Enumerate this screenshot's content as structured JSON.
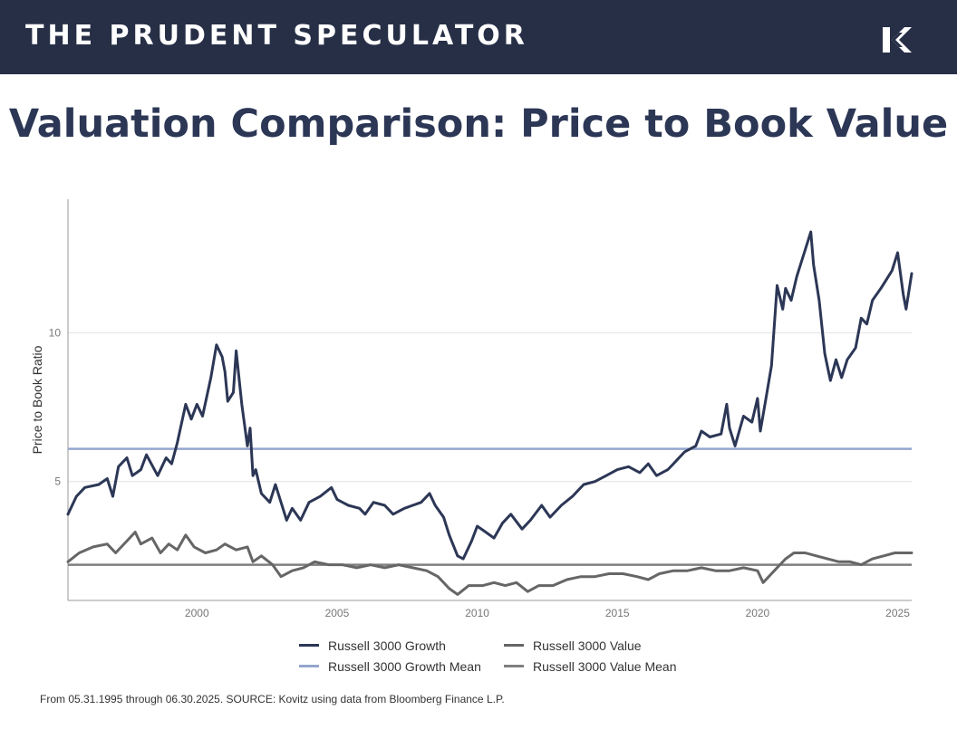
{
  "header": {
    "brand": "THE PRUDENT SPECULATOR",
    "logo_icon": "kovitz-k-logo-icon"
  },
  "page": {
    "title": "Valuation Comparison: Price to Book Value",
    "footnote": "From 05.31.1995 through 06.30.2025. SOURCE: Kovitz using data from Bloomberg Finance L.P."
  },
  "legend": [
    {
      "label": "Russell 3000 Growth",
      "color": "#2c3756"
    },
    {
      "label": "Russell 3000 Value",
      "color": "#666666"
    },
    {
      "label": "Russell 3000 Growth Mean",
      "color": "#94a6cf"
    },
    {
      "label": "Russell 3000 Value Mean",
      "color": "#7f7f7f"
    }
  ],
  "chart_data": {
    "type": "line",
    "title": "Valuation Comparison: Price to Book Value",
    "xlabel": "",
    "ylabel": "Price to Book Ratio",
    "xlim": [
      1995.4,
      2025.5
    ],
    "ylim": [
      1,
      14.5
    ],
    "x_ticks": [
      "2000",
      "2005",
      "2010",
      "2015",
      "2020",
      "2025"
    ],
    "y_ticks": [
      "5",
      "10"
    ],
    "grid": "horizontal",
    "legend_position": "bottom",
    "series": [
      {
        "name": "Russell 3000 Growth",
        "color": "#2c3756",
        "points": [
          [
            1995.4,
            3.9
          ],
          [
            1995.7,
            4.5
          ],
          [
            1996.0,
            4.8
          ],
          [
            1996.5,
            4.9
          ],
          [
            1996.8,
            5.1
          ],
          [
            1997.0,
            4.5
          ],
          [
            1997.2,
            5.5
          ],
          [
            1997.5,
            5.8
          ],
          [
            1997.7,
            5.2
          ],
          [
            1998.0,
            5.4
          ],
          [
            1998.2,
            5.9
          ],
          [
            1998.6,
            5.2
          ],
          [
            1998.9,
            5.8
          ],
          [
            1999.1,
            5.6
          ],
          [
            1999.3,
            6.3
          ],
          [
            1999.6,
            7.6
          ],
          [
            1999.8,
            7.1
          ],
          [
            2000.0,
            7.6
          ],
          [
            2000.2,
            7.2
          ],
          [
            2000.5,
            8.5
          ],
          [
            2000.7,
            9.6
          ],
          [
            2000.9,
            9.2
          ],
          [
            2001.0,
            8.7
          ],
          [
            2001.1,
            7.7
          ],
          [
            2001.3,
            8.0
          ],
          [
            2001.4,
            9.4
          ],
          [
            2001.6,
            7.6
          ],
          [
            2001.8,
            6.2
          ],
          [
            2001.9,
            6.8
          ],
          [
            2002.0,
            5.2
          ],
          [
            2002.1,
            5.4
          ],
          [
            2002.3,
            4.6
          ],
          [
            2002.6,
            4.3
          ],
          [
            2002.8,
            4.9
          ],
          [
            2003.0,
            4.3
          ],
          [
            2003.2,
            3.7
          ],
          [
            2003.4,
            4.1
          ],
          [
            2003.7,
            3.7
          ],
          [
            2004.0,
            4.3
          ],
          [
            2004.4,
            4.5
          ],
          [
            2004.8,
            4.8
          ],
          [
            2005.0,
            4.4
          ],
          [
            2005.4,
            4.2
          ],
          [
            2005.8,
            4.1
          ],
          [
            2006.0,
            3.9
          ],
          [
            2006.3,
            4.3
          ],
          [
            2006.7,
            4.2
          ],
          [
            2007.0,
            3.9
          ],
          [
            2007.4,
            4.1
          ],
          [
            2007.7,
            4.2
          ],
          [
            2008.0,
            4.3
          ],
          [
            2008.3,
            4.6
          ],
          [
            2008.5,
            4.2
          ],
          [
            2008.8,
            3.8
          ],
          [
            2009.0,
            3.2
          ],
          [
            2009.3,
            2.5
          ],
          [
            2009.5,
            2.4
          ],
          [
            2009.8,
            3.0
          ],
          [
            2010.0,
            3.5
          ],
          [
            2010.3,
            3.3
          ],
          [
            2010.6,
            3.1
          ],
          [
            2010.9,
            3.6
          ],
          [
            2011.2,
            3.9
          ],
          [
            2011.6,
            3.4
          ],
          [
            2011.9,
            3.7
          ],
          [
            2012.3,
            4.2
          ],
          [
            2012.6,
            3.8
          ],
          [
            2013.0,
            4.2
          ],
          [
            2013.4,
            4.5
          ],
          [
            2013.8,
            4.9
          ],
          [
            2014.2,
            5.0
          ],
          [
            2014.6,
            5.2
          ],
          [
            2015.0,
            5.4
          ],
          [
            2015.4,
            5.5
          ],
          [
            2015.8,
            5.3
          ],
          [
            2016.1,
            5.6
          ],
          [
            2016.4,
            5.2
          ],
          [
            2016.8,
            5.4
          ],
          [
            2017.0,
            5.6
          ],
          [
            2017.4,
            6.0
          ],
          [
            2017.8,
            6.2
          ],
          [
            2018.0,
            6.7
          ],
          [
            2018.3,
            6.5
          ],
          [
            2018.7,
            6.6
          ],
          [
            2018.9,
            7.6
          ],
          [
            2019.0,
            6.8
          ],
          [
            2019.2,
            6.2
          ],
          [
            2019.5,
            7.2
          ],
          [
            2019.8,
            7.0
          ],
          [
            2020.0,
            7.8
          ],
          [
            2020.1,
            6.7
          ],
          [
            2020.3,
            7.8
          ],
          [
            2020.5,
            8.9
          ],
          [
            2020.7,
            11.6
          ],
          [
            2020.9,
            10.8
          ],
          [
            2021.0,
            11.5
          ],
          [
            2021.2,
            11.1
          ],
          [
            2021.4,
            11.9
          ],
          [
            2021.7,
            12.8
          ],
          [
            2021.9,
            13.4
          ],
          [
            2022.0,
            12.3
          ],
          [
            2022.2,
            11.1
          ],
          [
            2022.4,
            9.3
          ],
          [
            2022.6,
            8.4
          ],
          [
            2022.8,
            9.1
          ],
          [
            2023.0,
            8.5
          ],
          [
            2023.2,
            9.1
          ],
          [
            2023.5,
            9.5
          ],
          [
            2023.7,
            10.5
          ],
          [
            2023.9,
            10.3
          ],
          [
            2024.1,
            11.1
          ],
          [
            2024.4,
            11.5
          ],
          [
            2024.6,
            11.8
          ],
          [
            2024.8,
            12.1
          ],
          [
            2025.0,
            12.7
          ],
          [
            2025.2,
            11.3
          ],
          [
            2025.3,
            10.8
          ],
          [
            2025.5,
            12.0
          ]
        ]
      },
      {
        "name": "Russell 3000 Value",
        "color": "#666666",
        "points": [
          [
            1995.4,
            2.3
          ],
          [
            1995.8,
            2.6
          ],
          [
            1996.3,
            2.8
          ],
          [
            1996.8,
            2.9
          ],
          [
            1997.1,
            2.6
          ],
          [
            1997.5,
            3.0
          ],
          [
            1997.8,
            3.3
          ],
          [
            1998.0,
            2.9
          ],
          [
            1998.4,
            3.1
          ],
          [
            1998.7,
            2.6
          ],
          [
            1999.0,
            2.9
          ],
          [
            1999.3,
            2.7
          ],
          [
            1999.6,
            3.2
          ],
          [
            1999.9,
            2.8
          ],
          [
            2000.3,
            2.6
          ],
          [
            2000.7,
            2.7
          ],
          [
            2001.0,
            2.9
          ],
          [
            2001.4,
            2.7
          ],
          [
            2001.8,
            2.8
          ],
          [
            2002.0,
            2.3
          ],
          [
            2002.3,
            2.5
          ],
          [
            2002.7,
            2.2
          ],
          [
            2003.0,
            1.8
          ],
          [
            2003.4,
            2.0
          ],
          [
            2003.8,
            2.1
          ],
          [
            2004.2,
            2.3
          ],
          [
            2004.7,
            2.2
          ],
          [
            2005.2,
            2.2
          ],
          [
            2005.7,
            2.1
          ],
          [
            2006.2,
            2.2
          ],
          [
            2006.7,
            2.1
          ],
          [
            2007.2,
            2.2
          ],
          [
            2007.7,
            2.1
          ],
          [
            2008.2,
            2.0
          ],
          [
            2008.6,
            1.8
          ],
          [
            2009.0,
            1.4
          ],
          [
            2009.3,
            1.2
          ],
          [
            2009.7,
            1.5
          ],
          [
            2010.2,
            1.5
          ],
          [
            2010.6,
            1.6
          ],
          [
            2011.0,
            1.5
          ],
          [
            2011.4,
            1.6
          ],
          [
            2011.8,
            1.3
          ],
          [
            2012.2,
            1.5
          ],
          [
            2012.7,
            1.5
          ],
          [
            2013.2,
            1.7
          ],
          [
            2013.7,
            1.8
          ],
          [
            2014.2,
            1.8
          ],
          [
            2014.7,
            1.9
          ],
          [
            2015.2,
            1.9
          ],
          [
            2015.7,
            1.8
          ],
          [
            2016.1,
            1.7
          ],
          [
            2016.5,
            1.9
          ],
          [
            2017.0,
            2.0
          ],
          [
            2017.5,
            2.0
          ],
          [
            2018.0,
            2.1
          ],
          [
            2018.5,
            2.0
          ],
          [
            2019.0,
            2.0
          ],
          [
            2019.5,
            2.1
          ],
          [
            2020.0,
            2.0
          ],
          [
            2020.2,
            1.6
          ],
          [
            2020.6,
            2.0
          ],
          [
            2021.0,
            2.4
          ],
          [
            2021.3,
            2.6
          ],
          [
            2021.7,
            2.6
          ],
          [
            2022.1,
            2.5
          ],
          [
            2022.5,
            2.4
          ],
          [
            2022.9,
            2.3
          ],
          [
            2023.3,
            2.3
          ],
          [
            2023.7,
            2.2
          ],
          [
            2024.1,
            2.4
          ],
          [
            2024.5,
            2.5
          ],
          [
            2024.9,
            2.6
          ],
          [
            2025.2,
            2.6
          ],
          [
            2025.5,
            2.6
          ]
        ]
      },
      {
        "name": "Russell 3000 Growth Mean",
        "color": "#94a6cf",
        "value": 6.1
      },
      {
        "name": "Russell 3000 Value Mean",
        "color": "#7f7f7f",
        "value": 2.2
      }
    ]
  }
}
